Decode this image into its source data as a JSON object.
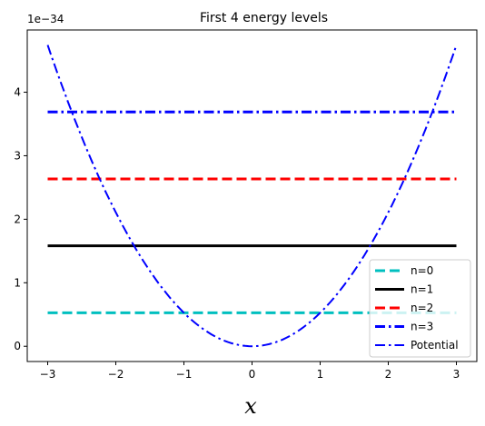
{
  "chart_data": {
    "type": "line",
    "title": "First 4 energy levels",
    "xlabel": "x",
    "ylabel": "",
    "y_offset_label": "1e−34",
    "xlim": [
      -3.3,
      3.3
    ],
    "ylim": [
      -0.24,
      4.98
    ],
    "xticks": [
      -3,
      -2,
      -1,
      0,
      1,
      2,
      3
    ],
    "xtick_labels": [
      "−3",
      "−2",
      "−1",
      "0",
      "1",
      "2",
      "3"
    ],
    "yticks": [
      0,
      1,
      2,
      3,
      4
    ],
    "ytick_labels": [
      "0",
      "1",
      "2",
      "3",
      "4"
    ],
    "grid": false,
    "legend_position": "lower-right",
    "series": [
      {
        "name": "n=0",
        "kind": "hline",
        "x": [
          -3,
          3
        ],
        "y": 0.527,
        "color": "#00bfbf",
        "style": "dashed"
      },
      {
        "name": "n=1",
        "kind": "hline",
        "x": [
          -3,
          3
        ],
        "y": 1.581,
        "color": "#000000",
        "style": "solid"
      },
      {
        "name": "n=2",
        "kind": "hline",
        "x": [
          -3,
          3
        ],
        "y": 2.635,
        "color": "#ff0000",
        "style": "dashed"
      },
      {
        "name": "n=3",
        "kind": "hline",
        "x": [
          -3,
          3
        ],
        "y": 3.689,
        "color": "#0000ff",
        "style": "dashdot"
      },
      {
        "name": "Potential",
        "kind": "curve",
        "formula": "0.527*x^2",
        "x": [
          -3,
          -2.5,
          -2,
          -1.5,
          -1,
          -0.5,
          0,
          0.5,
          1,
          1.5,
          2,
          2.5,
          3
        ],
        "y": [
          4.743,
          3.294,
          2.108,
          1.186,
          0.527,
          0.132,
          0,
          0.132,
          0.527,
          1.186,
          2.108,
          3.294,
          4.743
        ],
        "color": "#0000ff",
        "style": "dashdot"
      }
    ]
  }
}
